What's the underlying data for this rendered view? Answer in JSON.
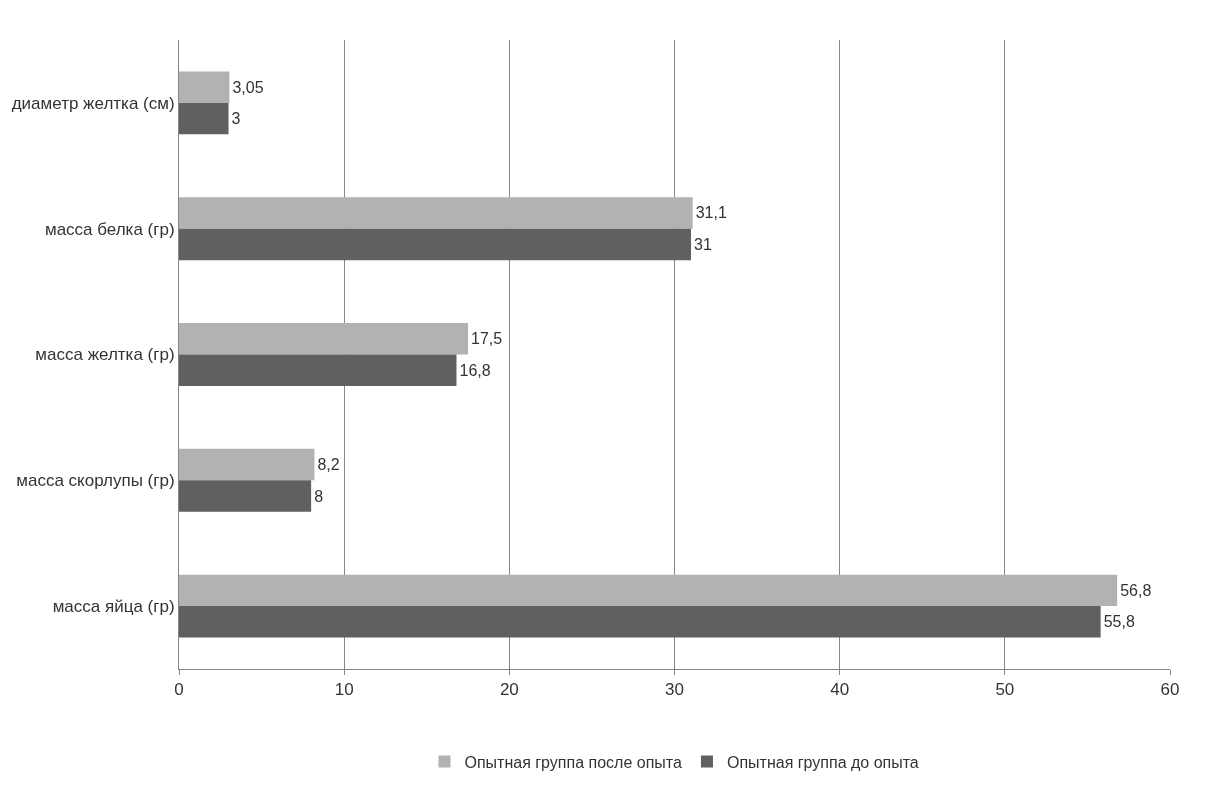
{
  "chart_data": {
    "type": "bar",
    "orientation": "horizontal",
    "categories": [
      "диаметр желтка (см)",
      "масса белка (гр)",
      "масса желтка (гр)",
      "масса скорлупы (гр)",
      "масса яйца (гр)"
    ],
    "series": [
      {
        "name": "Опытная группа после опыта",
        "color": "#b2b2b2",
        "values": [
          3.05,
          31.1,
          17.5,
          8.2,
          56.8
        ],
        "value_labels": [
          "3,05",
          "31,1",
          "17,5",
          "8,2",
          "56,8"
        ]
      },
      {
        "name": "Опытная группа до опыта",
        "color": "#606060",
        "values": [
          3,
          31,
          16.8,
          8,
          55.8
        ],
        "value_labels": [
          "3",
          "31",
          "16,8",
          "8",
          "55,8"
        ]
      }
    ],
    "xlim": [
      0,
      60
    ],
    "xticks": [
      0,
      10,
      20,
      30,
      40,
      50,
      60
    ],
    "grid": "x",
    "legend": "bottom"
  }
}
